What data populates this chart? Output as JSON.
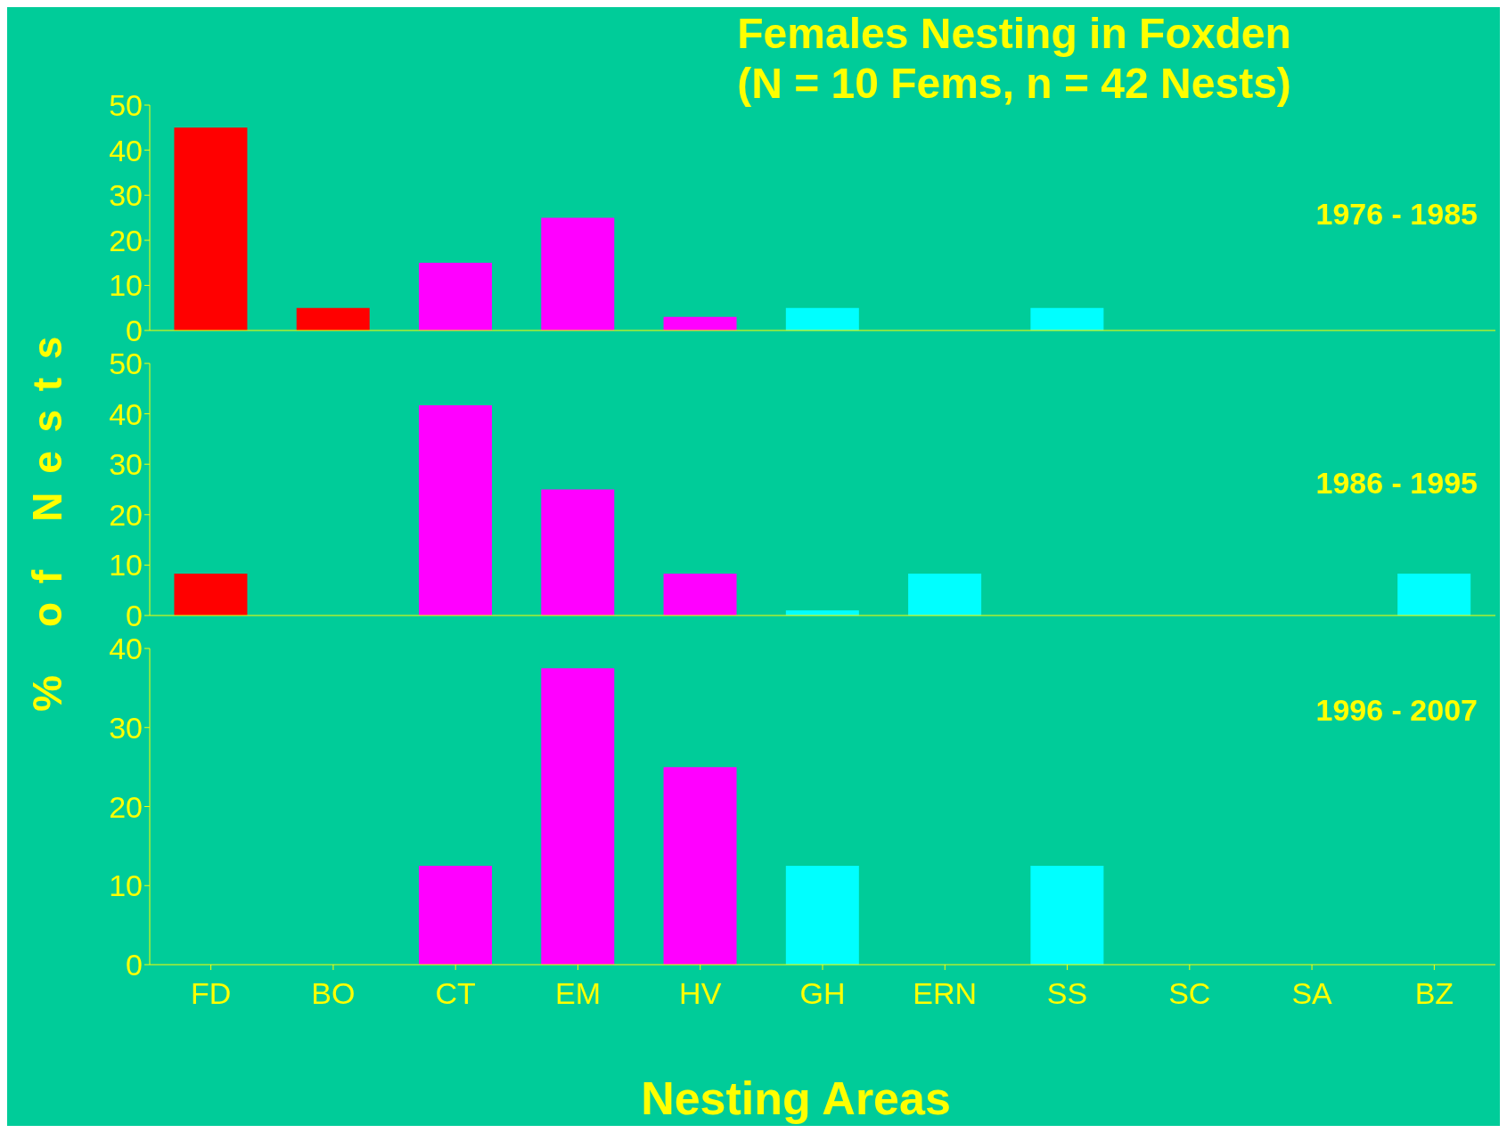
{
  "chart_data": [
    {
      "type": "bar",
      "title": "Females Nesting in Foxden\n(N = 10 Fems, n = 42 Nests)",
      "categories": [
        null,
        null,
        null,
        null,
        null,
        null,
        null,
        null,
        null,
        null,
        null
      ],
      "series": [
        {
          "values": [
            45,
            5,
            15,
            25,
            3,
            5,
            0,
            5,
            0,
            0,
            0
          ],
          "colors": [
            "#ff0000",
            "#ff0000",
            "#ff00ff",
            "#ff00ff",
            "#ff00ff",
            "#00ffff",
            "#00ffff",
            "#00ffff",
            "#00ffff",
            "#00ffff",
            "#00ffff"
          ]
        }
      ],
      "ylim": [
        0,
        50
      ],
      "yticks": [
        0,
        10,
        20,
        30,
        40,
        50
      ],
      "tick_labels": "y",
      "annotations": [
        "1976 - 1985"
      ]
    },
    {
      "type": "bar",
      "ylabel": "% of Nests",
      "categories": [
        null,
        null,
        null,
        null,
        null,
        null,
        null,
        null,
        null,
        null,
        null
      ],
      "series": [
        {
          "values": [
            8.3,
            0,
            41.7,
            25,
            8.3,
            1,
            8.3,
            0,
            0,
            0,
            8.3
          ],
          "colors": [
            "#ff0000",
            "#ff0000",
            "#ff00ff",
            "#ff00ff",
            "#ff00ff",
            "#00ffff",
            "#00ffff",
            "#00ffff",
            "#00ffff",
            "#00ffff",
            "#00ffff"
          ]
        }
      ],
      "ylim": [
        0,
        50
      ],
      "yticks": [
        0,
        10,
        20,
        30,
        40,
        50
      ],
      "tick_labels": "y",
      "annotations": [
        "1986 - 1995"
      ]
    },
    {
      "type": "bar",
      "xlabel": "Nesting Areas",
      "categories": [
        "FD",
        "BO",
        "CT",
        "EM",
        "HV",
        "GH",
        "ERN",
        "SS",
        "SC",
        "SA",
        "BZ"
      ],
      "series": [
        {
          "values": [
            0,
            0,
            12.5,
            37.5,
            25,
            12.5,
            0,
            12.5,
            0,
            0,
            0
          ],
          "colors": [
            "#ff0000",
            "#ff0000",
            "#ff00ff",
            "#ff00ff",
            "#ff00ff",
            "#00ffff",
            "#00ffff",
            "#00ffff",
            "#00ffff",
            "#00ffff",
            "#00ffff"
          ]
        }
      ],
      "ylim": [
        0,
        40
      ],
      "yticks": [
        0,
        10,
        20,
        30,
        40
      ],
      "annotations": [
        "1996 - 2007"
      ]
    }
  ]
}
